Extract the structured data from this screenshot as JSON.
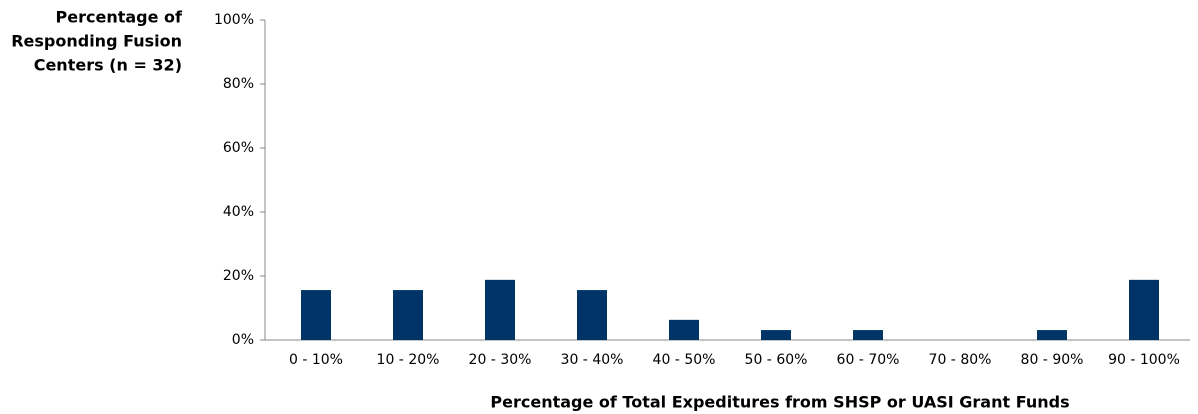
{
  "chart_data": {
    "type": "bar",
    "y_label_lines": [
      "Percentage of",
      "Responding Fusion",
      "Centers (n = 32)"
    ],
    "x_label": "Percentage of Total Expeditures from SHSP or UASI Grant Funds",
    "categories": [
      "0 - 10%",
      "10 - 20%",
      "20 - 30%",
      "30 - 40%",
      "40 - 50%",
      "50 - 60%",
      "60 - 70%",
      "70 - 80%",
      "80 - 90%",
      "90 - 100%"
    ],
    "values": [
      15.6,
      15.6,
      18.8,
      15.6,
      6.3,
      3.1,
      3.1,
      0,
      3.1,
      18.8
    ],
    "color": "#003366",
    "ylim": [
      0,
      100
    ],
    "yticks": [
      {
        "value": 0,
        "label": "0%"
      },
      {
        "value": 20,
        "label": "20%"
      },
      {
        "value": 40,
        "label": "40%"
      },
      {
        "value": 60,
        "label": "60%"
      },
      {
        "value": 80,
        "label": "80%"
      },
      {
        "value": 100,
        "label": "100%"
      }
    ],
    "grid": false
  }
}
